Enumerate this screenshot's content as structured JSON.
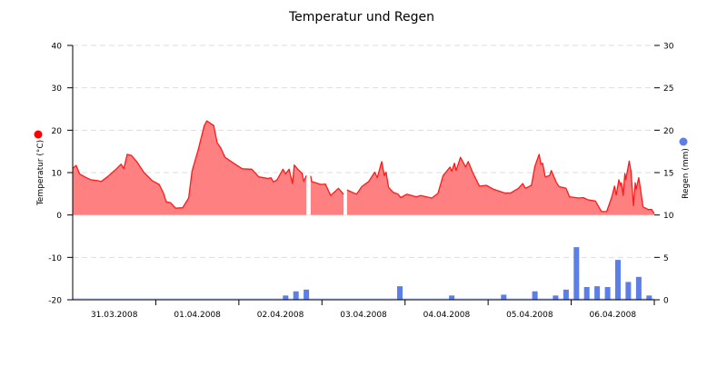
{
  "chart_data": {
    "type": "area+bar",
    "title": "Temperatur und Regen",
    "x_range": [
      "2008-03-31 00:00",
      "2008-04-07 00:00"
    ],
    "x_tick_labels": [
      "31.03.2008",
      "01.04.2008",
      "02.04.2008",
      "03.04.2008",
      "04.04.2008",
      "05.04.2008",
      "06.04.2008"
    ],
    "left_axis": {
      "label": "Temperatur (°C)",
      "range": [
        -20,
        40
      ],
      "ticks": [
        -20,
        -10,
        0,
        10,
        20,
        30,
        40
      ],
      "legend_color": "#ff0000"
    },
    "right_axis": {
      "label": "Regen (mm)",
      "range": [
        0,
        30
      ],
      "tick_labels": [
        "0",
        "5",
        "10",
        "15",
        "20",
        "25",
        "30"
      ],
      "legend_color": "#5b7fe6"
    },
    "grid": true,
    "colors": {
      "temp_line": "#ff1a1a",
      "temp_fill": "#ff8080",
      "rain_bar": "#5b7fe6"
    },
    "series": [
      {
        "name": "Temperatur (°C)",
        "type": "area",
        "axis": "left",
        "points": [
          [
            "2008-03-31 00:00",
            11.0
          ],
          [
            "2008-03-31 01:00",
            11.7
          ],
          [
            "2008-03-31 02:00",
            9.7
          ],
          [
            "2008-03-31 03:30",
            9.0
          ],
          [
            "2008-03-31 05:15",
            8.3
          ],
          [
            "2008-03-31 07:15",
            8.1
          ],
          [
            "2008-03-31 08:15",
            7.9
          ],
          [
            "2008-03-31 10:00",
            9.0
          ],
          [
            "2008-03-31 12:30",
            10.8
          ],
          [
            "2008-03-31 14:00",
            12.0
          ],
          [
            "2008-03-31 14:45",
            10.9
          ],
          [
            "2008-03-31 15:45",
            14.3
          ],
          [
            "2008-03-31 17:00",
            14.0
          ],
          [
            "2008-03-31 18:30",
            12.6
          ],
          [
            "2008-03-31 20:30",
            10.1
          ],
          [
            "2008-03-31 23:00",
            8.1
          ],
          [
            "2008-04-01 01:00",
            7.2
          ],
          [
            "2008-04-01 02:15",
            5.1
          ],
          [
            "2008-04-01 03:00",
            3.1
          ],
          [
            "2008-04-01 04:15",
            2.9
          ],
          [
            "2008-04-01 05:45",
            1.6
          ],
          [
            "2008-04-01 07:45",
            1.7
          ],
          [
            "2008-04-01 08:30",
            2.7
          ],
          [
            "2008-04-01 09:30",
            4.0
          ],
          [
            "2008-04-01 10:30",
            10.4
          ],
          [
            "2008-04-01 12:15",
            15.4
          ],
          [
            "2008-04-01 14:00",
            21.1
          ],
          [
            "2008-04-01 14:45",
            22.2
          ],
          [
            "2008-04-01 16:00",
            21.5
          ],
          [
            "2008-04-01 16:45",
            21.1
          ],
          [
            "2008-04-01 17:45",
            17.0
          ],
          [
            "2008-04-01 18:45",
            15.8
          ],
          [
            "2008-04-01 20:00",
            13.6
          ],
          [
            "2008-04-01 23:15",
            11.8
          ],
          [
            "2008-04-02 01:00",
            10.9
          ],
          [
            "2008-04-02 03:45",
            10.8
          ],
          [
            "2008-04-02 05:45",
            9.0
          ],
          [
            "2008-04-02 08:30",
            8.6
          ],
          [
            "2008-04-02 09:15",
            8.8
          ],
          [
            "2008-04-02 10:00",
            7.8
          ],
          [
            "2008-04-02 11:00",
            8.3
          ],
          [
            "2008-04-02 12:45",
            10.8
          ],
          [
            "2008-04-02 13:30",
            9.7
          ],
          [
            "2008-04-02 14:30",
            10.8
          ],
          [
            "2008-04-02 15:30",
            7.4
          ],
          [
            "2008-04-02 16:00",
            11.8
          ],
          [
            "2008-04-02 17:00",
            10.8
          ],
          [
            "2008-04-02 18:15",
            9.8
          ],
          [
            "2008-04-02 18:45",
            7.9
          ],
          [
            "2008-04-02 19:30",
            9.3
          ],
          [
            "2008-04-02 20:00",
            null
          ],
          [
            "2008-04-02 20:45",
            9.2
          ],
          [
            "2008-04-02 21:00",
            7.9
          ],
          [
            "2008-04-02 23:45",
            7.2
          ],
          [
            "2008-04-03 01:00",
            7.3
          ],
          [
            "2008-04-03 02:30",
            4.6
          ],
          [
            "2008-04-03 04:45",
            6.3
          ],
          [
            "2008-04-03 06:15",
            4.9
          ],
          [
            "2008-04-03 06:45",
            null
          ],
          [
            "2008-04-03 07:15",
            5.9
          ],
          [
            "2008-04-03 10:00",
            4.9
          ],
          [
            "2008-04-03 11:30",
            6.7
          ],
          [
            "2008-04-03 13:30",
            7.9
          ],
          [
            "2008-04-03 15:15",
            10.1
          ],
          [
            "2008-04-03 16:00",
            8.8
          ],
          [
            "2008-04-03 17:15",
            12.6
          ],
          [
            "2008-04-03 18:00",
            9.3
          ],
          [
            "2008-04-03 18:30",
            10.1
          ],
          [
            "2008-04-03 19:15",
            6.5
          ],
          [
            "2008-04-03 20:30",
            5.4
          ],
          [
            "2008-04-03 22:00",
            4.9
          ],
          [
            "2008-04-03 22:45",
            4.1
          ],
          [
            "2008-04-04 00:30",
            4.9
          ],
          [
            "2008-04-04 03:15",
            4.3
          ],
          [
            "2008-04-04 04:30",
            4.6
          ],
          [
            "2008-04-04 07:45",
            4.0
          ],
          [
            "2008-04-04 09:30",
            5.1
          ],
          [
            "2008-04-04 11:00",
            9.3
          ],
          [
            "2008-04-04 13:00",
            11.3
          ],
          [
            "2008-04-04 13:30",
            10.3
          ],
          [
            "2008-04-04 14:15",
            12.2
          ],
          [
            "2008-04-04 14:45",
            10.5
          ],
          [
            "2008-04-04 16:00",
            13.6
          ],
          [
            "2008-04-04 17:30",
            11.3
          ],
          [
            "2008-04-04 18:15",
            12.6
          ],
          [
            "2008-04-04 19:30",
            10.1
          ],
          [
            "2008-04-04 21:30",
            6.8
          ],
          [
            "2008-04-04 23:30",
            7.0
          ],
          [
            "2008-04-05 01:30",
            6.1
          ],
          [
            "2008-04-05 04:45",
            5.2
          ],
          [
            "2008-04-05 06:30",
            5.2
          ],
          [
            "2008-04-05 08:45",
            6.3
          ],
          [
            "2008-04-05 10:00",
            7.4
          ],
          [
            "2008-04-05 10:45",
            6.3
          ],
          [
            "2008-04-05 12:30",
            7.0
          ],
          [
            "2008-04-05 13:30",
            11.5
          ],
          [
            "2008-04-05 14:45",
            14.3
          ],
          [
            "2008-04-05 15:15",
            12.0
          ],
          [
            "2008-04-05 15:45",
            12.2
          ],
          [
            "2008-04-05 16:30",
            9.0
          ],
          [
            "2008-04-05 17:45",
            9.3
          ],
          [
            "2008-04-05 18:15",
            10.5
          ],
          [
            "2008-04-05 19:45",
            7.6
          ],
          [
            "2008-04-05 20:30",
            6.7
          ],
          [
            "2008-04-05 22:30",
            6.3
          ],
          [
            "2008-04-05 23:30",
            4.3
          ],
          [
            "2008-04-06 02:15",
            4.0
          ],
          [
            "2008-04-06 03:30",
            4.1
          ],
          [
            "2008-04-06 04:45",
            3.6
          ],
          [
            "2008-04-06 07:00",
            3.3
          ],
          [
            "2008-04-06 08:45",
            0.8
          ],
          [
            "2008-04-06 10:15",
            0.8
          ],
          [
            "2008-04-06 11:45",
            4.3
          ],
          [
            "2008-04-06 12:30",
            6.8
          ],
          [
            "2008-04-06 13:00",
            4.7
          ],
          [
            "2008-04-06 13:45",
            8.3
          ],
          [
            "2008-04-06 14:15",
            7.0
          ],
          [
            "2008-04-06 14:30",
            7.6
          ],
          [
            "2008-04-06 15:00",
            4.6
          ],
          [
            "2008-04-06 15:30",
            9.8
          ],
          [
            "2008-04-06 15:45",
            8.3
          ],
          [
            "2008-04-06 16:45",
            12.7
          ],
          [
            "2008-04-06 17:15",
            10.4
          ],
          [
            "2008-04-06 18:00",
            2.2
          ],
          [
            "2008-04-06 18:30",
            7.6
          ],
          [
            "2008-04-06 18:45",
            6.1
          ],
          [
            "2008-04-06 19:30",
            8.8
          ],
          [
            "2008-04-06 20:00",
            6.1
          ],
          [
            "2008-04-06 20:45",
            1.9
          ],
          [
            "2008-04-06 22:15",
            1.3
          ],
          [
            "2008-04-06 23:15",
            1.3
          ],
          [
            "2008-04-07 00:00",
            0.3
          ]
        ]
      },
      {
        "name": "Regen (mm)",
        "type": "bar",
        "axis": "right",
        "points": [
          [
            "2008-04-02 13:30",
            0.5
          ],
          [
            "2008-04-02 16:30",
            1.0
          ],
          [
            "2008-04-02 19:30",
            1.2
          ],
          [
            "2008-04-03 22:30",
            1.6
          ],
          [
            "2008-04-04 13:30",
            0.5
          ],
          [
            "2008-04-05 04:30",
            0.6
          ],
          [
            "2008-04-05 13:30",
            1.0
          ],
          [
            "2008-04-05 19:30",
            0.5
          ],
          [
            "2008-04-05 22:30",
            1.2
          ],
          [
            "2008-04-06 01:30",
            6.2
          ],
          [
            "2008-04-06 04:30",
            1.5
          ],
          [
            "2008-04-06 07:30",
            1.6
          ],
          [
            "2008-04-06 10:30",
            1.5
          ],
          [
            "2008-04-06 13:30",
            4.7
          ],
          [
            "2008-04-06 16:30",
            2.1
          ],
          [
            "2008-04-06 19:30",
            2.7
          ],
          [
            "2008-04-06 22:30",
            0.5
          ]
        ]
      }
    ]
  }
}
